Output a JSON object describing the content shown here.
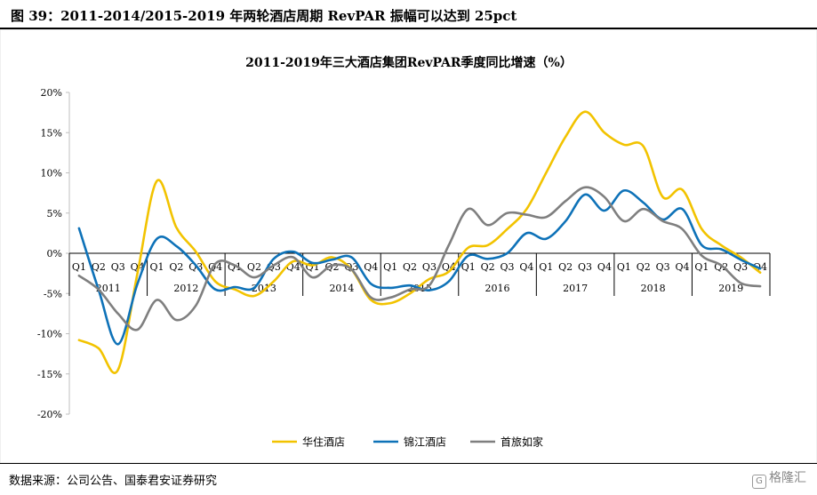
{
  "figure": {
    "title": "图 39：2011-2014/2015-2019 年两轮酒店周期 RevPAR 振幅可以达到 25pct",
    "source": "数据来源：公司公告、国泰君安证券研究",
    "watermark": "格隆汇"
  },
  "chart_data": {
    "type": "line",
    "title": "2011-2019年三大酒店集团RevPAR季度同比增速（%）",
    "ylim": [
      -20,
      20
    ],
    "yticks": [
      20,
      15,
      10,
      5,
      0,
      -5,
      -10,
      -15,
      -20
    ],
    "ytick_labels": [
      "20%",
      "15%",
      "10%",
      "5%",
      "0%",
      "-5%",
      "-10%",
      "-15%",
      "-20%"
    ],
    "quarter_labels": [
      "Q1",
      "Q2",
      "Q3",
      "Q4",
      "Q1",
      "Q2",
      "Q3",
      "Q4",
      "Q1",
      "Q2",
      "Q3",
      "Q4",
      "Q1",
      "Q2",
      "Q3",
      "Q4",
      "Q1",
      "Q2",
      "Q3",
      "Q4",
      "Q1",
      "Q2",
      "Q3",
      "Q4",
      "Q1",
      "Q2",
      "Q3",
      "Q4",
      "Q1",
      "Q2",
      "Q3",
      "Q4",
      "Q1",
      "Q2",
      "Q3",
      "Q4"
    ],
    "years": [
      "2011",
      "2012",
      "2013",
      "2014",
      "2015",
      "2016",
      "2017",
      "2018",
      "2019"
    ],
    "grid": false,
    "legend_position": "bottom",
    "series": [
      {
        "name": "华住酒店",
        "color": "#F2C300",
        "values": [
          -10.8,
          -11.8,
          -14.5,
          -2.5,
          9.0,
          3.2,
          0.2,
          -3.5,
          -4.5,
          -5.3,
          -3.5,
          -1.0,
          -1.5,
          -0.5,
          -2.0,
          -5.8,
          -6.2,
          -5.0,
          -3.2,
          -2.3,
          0.7,
          1.0,
          3.0,
          5.5,
          10.0,
          14.5,
          17.6,
          15.0,
          13.5,
          13.3,
          7.0,
          7.9,
          3.0,
          1.0,
          -0.5,
          -2.4
        ]
      },
      {
        "name": "锦江酒店",
        "color": "#0E72B8",
        "values": [
          3.1,
          -4.5,
          -11.3,
          -3.8,
          1.8,
          0.9,
          -1.5,
          -4.5,
          -4.2,
          -4.3,
          -0.7,
          0.2,
          -1.2,
          -0.8,
          -0.5,
          -3.8,
          -4.3,
          -4.0,
          -4.6,
          -3.5,
          -0.3,
          -0.7,
          0.0,
          2.5,
          1.8,
          4.0,
          7.3,
          5.3,
          7.8,
          6.3,
          4.2,
          5.5,
          1.0,
          0.5,
          -0.8,
          -1.9
        ]
      },
      {
        "name": "首旅如家",
        "color": "#7F7F7F",
        "values": [
          -2.8,
          -4.5,
          -7.5,
          -9.5,
          -5.8,
          -8.3,
          -6.5,
          -1.3,
          -1.5,
          -3.0,
          -1.5,
          -0.5,
          -3.0,
          -1.5,
          -2.0,
          -5.5,
          -5.5,
          -4.5,
          -4.0,
          1.0,
          5.5,
          3.5,
          5.0,
          4.8,
          4.5,
          6.5,
          8.2,
          7.0,
          4.0,
          5.5,
          4.0,
          3.0,
          -0.3,
          -1.5,
          -3.7,
          -4.1
        ]
      }
    ]
  }
}
